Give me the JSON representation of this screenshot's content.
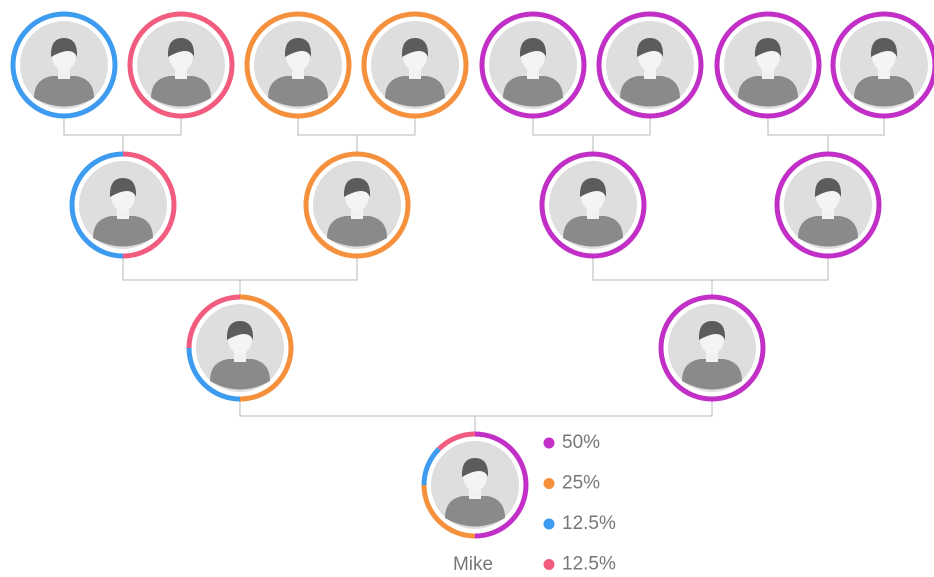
{
  "person": {
    "name": "Mike"
  },
  "legend": [
    {
      "label": "50%",
      "color": "#c12fc7"
    },
    {
      "label": "25%",
      "color": "#f5903d"
    },
    {
      "label": "12.5%",
      "color": "#3d9bf0"
    },
    {
      "label": "12.5%",
      "color": "#f25c7f"
    }
  ]
}
